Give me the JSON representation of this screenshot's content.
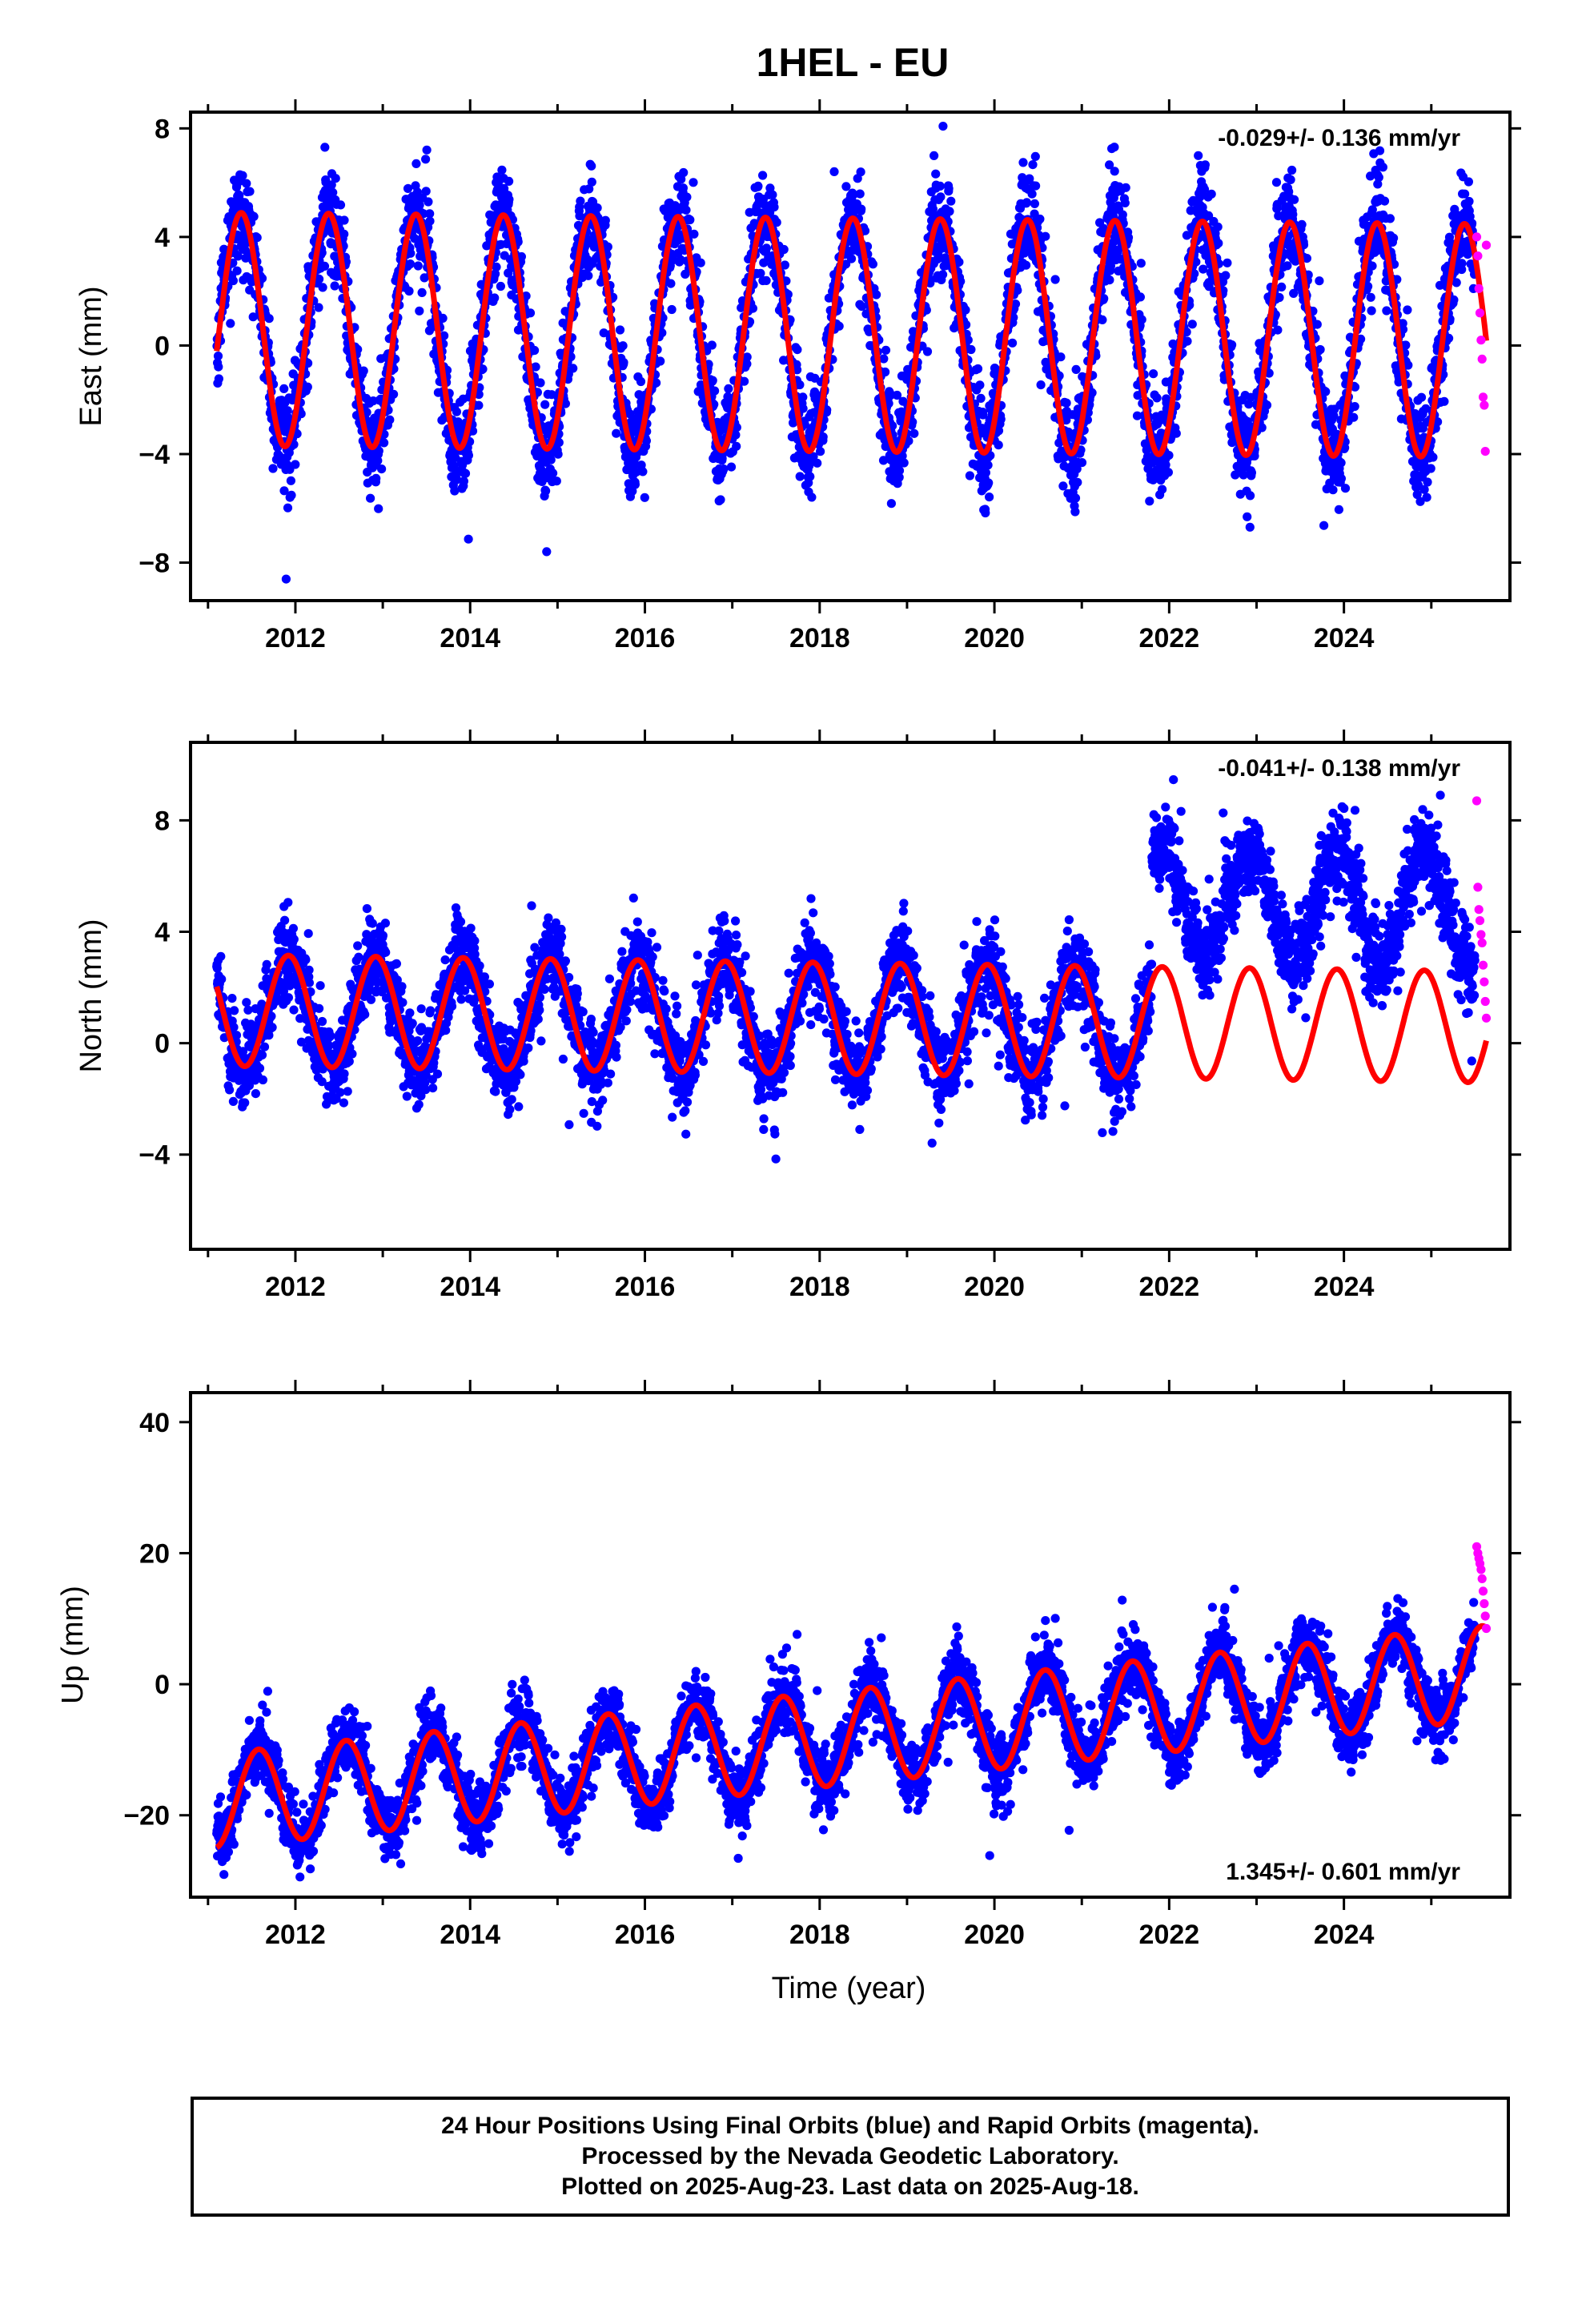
{
  "title": "1HEL - EU",
  "chart_data": [
    {
      "type": "scatter",
      "ylabel": "East (mm)",
      "xlabel": "",
      "xlim": [
        2010.8,
        2025.9
      ],
      "ylim": [
        -9.4,
        8.6
      ],
      "yticks": [
        -8,
        -4,
        0,
        4,
        8
      ],
      "ytick_labels": [
        "−8",
        "−4",
        "0",
        "4",
        "8"
      ],
      "xticks": [
        2012,
        2014,
        2016,
        2018,
        2020,
        2022,
        2024
      ],
      "xtick_labels": [
        "2012",
        "2014",
        "2016",
        "2018",
        "2020",
        "2022",
        "2024"
      ],
      "rate_text": "-0.029+/- 0.136 mm/yr",
      "rate_position": "top-right",
      "series": [
        {
          "kind": "final_orbits_points",
          "color": "#0000ff",
          "x_range": [
            2011.1,
            2025.5
          ],
          "model": {
            "offset": 0.4,
            "trend": -0.029,
            "amp": 4.3,
            "phase_peak": 0.38
          },
          "scatter_sd": 1.5
        },
        {
          "kind": "rapid_orbits_points",
          "color": "#ff00ff",
          "x_range": [
            2025.52,
            2025.63
          ],
          "y": [
            4.0,
            3.3,
            2.1,
            1.2,
            0.2,
            -0.5,
            -1.9,
            -2.2,
            -3.9,
            3.7
          ]
        },
        {
          "kind": "model_fit",
          "color": "#ff0000",
          "x_range": [
            2011.1,
            2025.63
          ],
          "model": {
            "offset": 0.4,
            "trend": -0.029,
            "amp": 4.3,
            "phase_peak": 0.38
          }
        }
      ]
    },
    {
      "type": "scatter",
      "ylabel": "North (mm)",
      "xlabel": "",
      "xlim": [
        2010.8,
        2025.9
      ],
      "ylim": [
        -7.4,
        10.8
      ],
      "yticks": [
        -4,
        0,
        4,
        8
      ],
      "ytick_labels": [
        "−4",
        "0",
        "4",
        "8"
      ],
      "xticks": [
        2012,
        2014,
        2016,
        2018,
        2020,
        2022,
        2024
      ],
      "xtick_labels": [
        "2012",
        "2014",
        "2016",
        "2018",
        "2020",
        "2022",
        "2024"
      ],
      "rate_text": "-0.041+/- 0.138 mm/yr",
      "rate_position": "top-right",
      "series": [
        {
          "kind": "final_orbits_points",
          "color": "#0000ff",
          "x_range": [
            2011.1,
            2025.5
          ],
          "model": {
            "offset": 0.9,
            "trend": -0.041,
            "amp": 2.0,
            "phase_peak": 0.92,
            "step_year": 2021.8,
            "step_size": 4.3
          },
          "scatter_sd": 1.2
        },
        {
          "kind": "rapid_orbits_points",
          "color": "#ff00ff",
          "x_range": [
            2025.52,
            2025.63
          ],
          "y": [
            8.7,
            5.6,
            4.8,
            4.4,
            3.9,
            3.6,
            2.8,
            2.2,
            1.5,
            0.9
          ]
        },
        {
          "kind": "model_fit",
          "color": "#ff0000",
          "x_range": [
            2011.1,
            2025.63
          ],
          "model": {
            "offset": 0.9,
            "trend": -0.041,
            "amp": 2.0,
            "phase_peak": 0.92
          }
        }
      ]
    },
    {
      "type": "scatter",
      "ylabel": "Up (mm)",
      "xlabel": "Time (year)",
      "xlim": [
        2010.8,
        2025.9
      ],
      "ylim": [
        -32.5,
        44.5
      ],
      "yticks": [
        -20,
        0,
        20,
        40
      ],
      "ytick_labels": [
        "−20",
        "0",
        "20",
        "40"
      ],
      "xticks": [
        2012,
        2014,
        2016,
        2018,
        2020,
        2022,
        2024
      ],
      "xtick_labels": [
        "2012",
        "2014",
        "2016",
        "2018",
        "2020",
        "2022",
        "2024"
      ],
      "rate_text": "1.345+/- 0.601 mm/yr",
      "rate_position": "bottom-right",
      "series": [
        {
          "kind": "final_orbits_points",
          "color": "#0000ff",
          "x_range": [
            2011.1,
            2025.5
          ],
          "model": {
            "offset": -8.5,
            "trend": 1.345,
            "amp": 7.2,
            "phase_peak": 0.58
          },
          "scatter_sd": 4.0
        },
        {
          "kind": "rapid_orbits_points",
          "color": "#ff00ff",
          "x_range": [
            2025.52,
            2025.63
          ],
          "y": [
            21.0,
            20.0,
            19.2,
            18.4,
            17.5,
            16.1,
            14.2,
            12.3,
            10.4,
            8.5
          ]
        },
        {
          "kind": "model_fit",
          "color": "#ff0000",
          "x_range": [
            2011.1,
            2025.63
          ],
          "model": {
            "offset": -8.5,
            "trend": 1.345,
            "amp": 7.2,
            "phase_peak": 0.58
          }
        }
      ]
    }
  ],
  "footer": {
    "line1": "24 Hour Positions Using Final Orbits (blue) and Rapid Orbits (magenta).",
    "line2": "Processed by the Nevada Geodetic Laboratory.",
    "line3": "Plotted on 2025-Aug-23. Last data on 2025-Aug-18."
  }
}
